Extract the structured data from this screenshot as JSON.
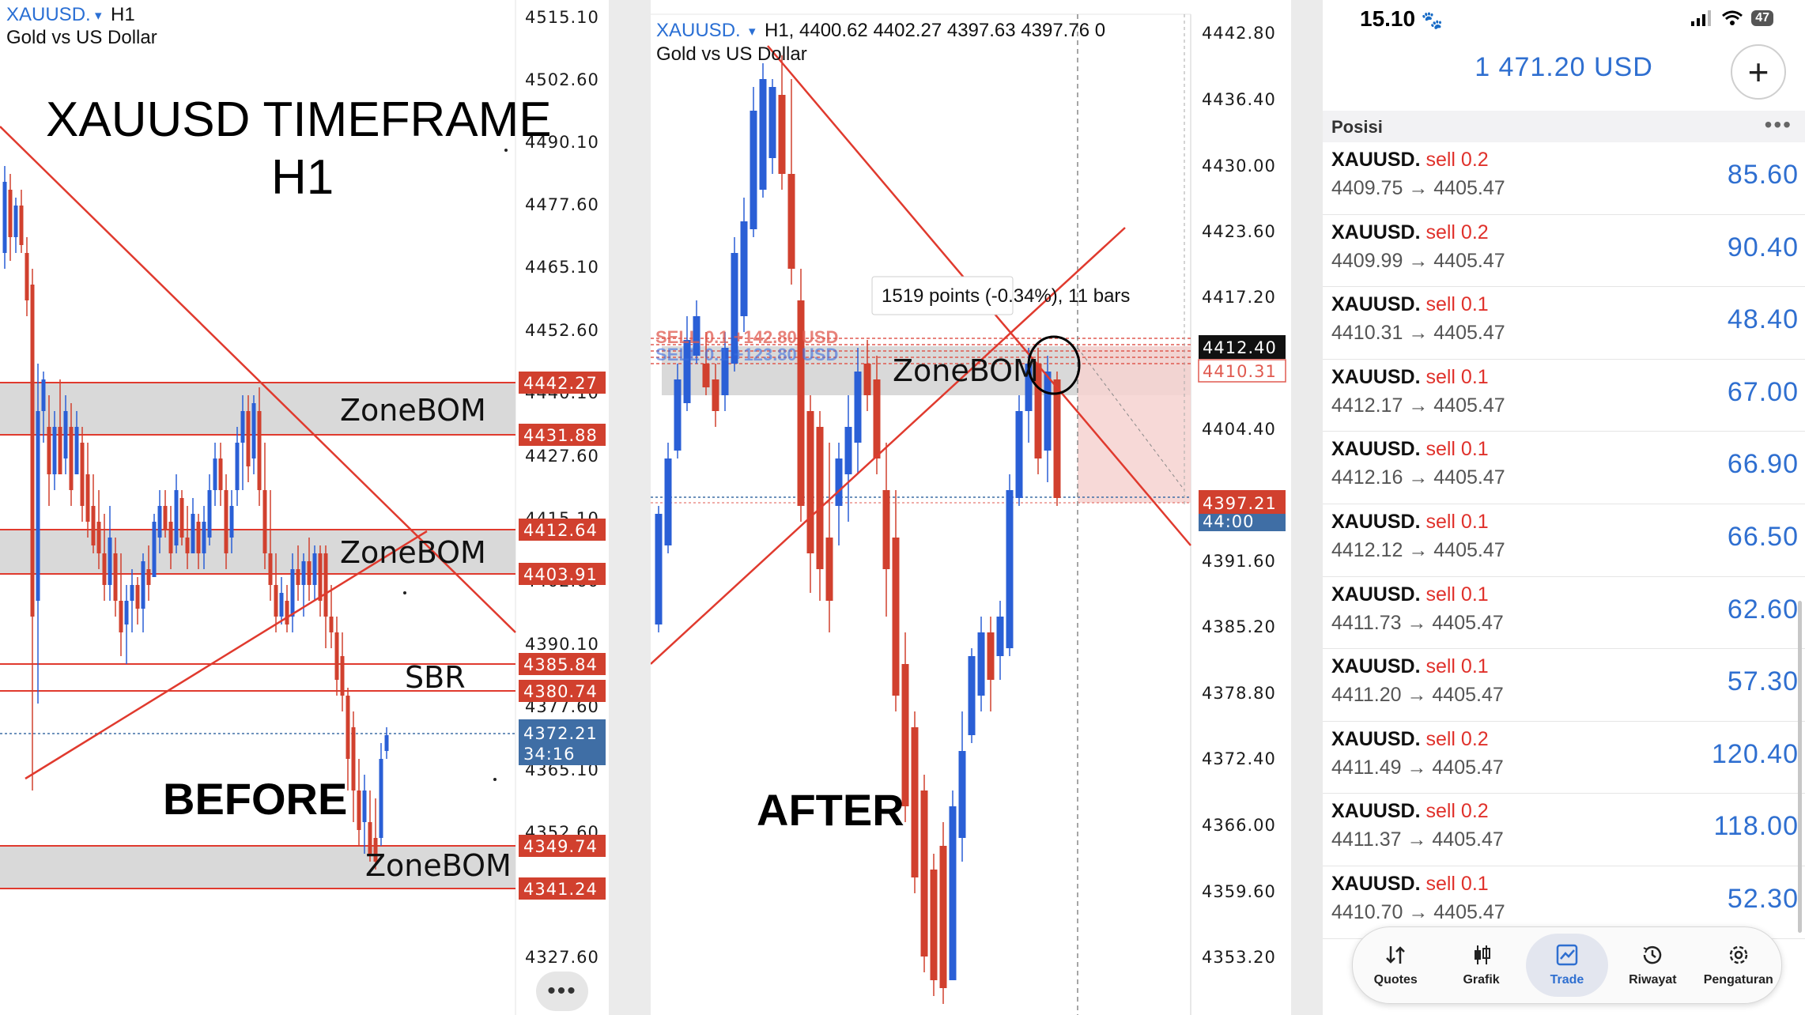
{
  "left_chart": {
    "symbol": "XAUUSD.",
    "dropdown_glyph": "▾",
    "timeframe": "H1",
    "subtitle": "Gold vs US Dollar",
    "title_line1": "XAUUSD TIMEFRAME",
    "title_line2": "H1",
    "label_before": "BEFORE",
    "zone1": "ZoneBOM",
    "zone2": "ZoneBOM",
    "zone3": "ZoneBOM",
    "sbr": "SBR",
    "axis": [
      "4515.10",
      "4502.60",
      "4490.10",
      "4477.60",
      "4465.10",
      "4452.60",
      "4440.10",
      "4427.60",
      "4415.10",
      "4402.60",
      "4390.10",
      "4377.60",
      "4365.10",
      "4352.60",
      "4327.60"
    ],
    "tags": [
      "4442.27",
      "4431.88",
      "4412.64",
      "4403.91",
      "4385.84",
      "4380.74",
      "4349.74",
      "4341.24"
    ],
    "current_price": "4372.21",
    "countdown": "34:16",
    "colors": {
      "bull": "#2a5fd6",
      "bear": "#d1402e",
      "line": "#e03a2e",
      "zone": "#d8d8d8",
      "current": "#3f6ea5"
    }
  },
  "mid_chart": {
    "symbol": "XAUUSD.",
    "dropdown_glyph": "▾",
    "header": "H1, 4400.62 4402.27 4397.63 4397.76 0",
    "subtitle": "Gold vs US Dollar",
    "label_after": "AFTER",
    "zone": "ZoneBOM",
    "measure": "1519 points (-0.34%), 11 bars",
    "sell_labels": [
      "SELL 0.1 +142.80 USD",
      "SELL 0.1 +123.80 USD"
    ],
    "axis": [
      "4442.80",
      "4436.40",
      "4430.00",
      "4423.60",
      "4417.20",
      "4404.40",
      "4391.60",
      "4385.20",
      "4378.80",
      "4372.40",
      "4366.00",
      "4359.60",
      "4353.20"
    ],
    "tag_black": "4412.40",
    "tag_outline": "4410.31",
    "current_price": "4397.21",
    "countdown": "44:00"
  },
  "phone": {
    "time": "15.10",
    "battery": "47",
    "balance": "1 471.20 USD",
    "plus": "+",
    "section": "Posisi",
    "section_menu": "•••",
    "positions": [
      {
        "symbol": "XAUUSD.",
        "side": "sell 0.2",
        "prices": "4409.75 → 4405.47",
        "profit": "85.60"
      },
      {
        "symbol": "XAUUSD.",
        "side": "sell 0.2",
        "prices": "4409.99 → 4405.47",
        "profit": "90.40"
      },
      {
        "symbol": "XAUUSD.",
        "side": "sell 0.1",
        "prices": "4410.31 → 4405.47",
        "profit": "48.40"
      },
      {
        "symbol": "XAUUSD.",
        "side": "sell 0.1",
        "prices": "4412.17 → 4405.47",
        "profit": "67.00"
      },
      {
        "symbol": "XAUUSD.",
        "side": "sell 0.1",
        "prices": "4412.16 → 4405.47",
        "profit": "66.90"
      },
      {
        "symbol": "XAUUSD.",
        "side": "sell 0.1",
        "prices": "4412.12 → 4405.47",
        "profit": "66.50"
      },
      {
        "symbol": "XAUUSD.",
        "side": "sell 0.1",
        "prices": "4411.73 → 4405.47",
        "profit": "62.60"
      },
      {
        "symbol": "XAUUSD.",
        "side": "sell 0.1",
        "prices": "4411.20 → 4405.47",
        "profit": "57.30"
      },
      {
        "symbol": "XAUUSD.",
        "side": "sell 0.2",
        "prices": "4411.49 → 4405.47",
        "profit": "120.40"
      },
      {
        "symbol": "XAUUSD.",
        "side": "sell 0.2",
        "prices": "4411.37 → 4405.47",
        "profit": "118.00"
      },
      {
        "symbol": "XAUUSD.",
        "side": "sell 0.1",
        "prices": "4410.70 → 4405.47",
        "profit": "52.30"
      }
    ],
    "tabs": [
      {
        "label": "Quotes",
        "icon": "quotes-icon",
        "glyph": "⇅",
        "active": false
      },
      {
        "label": "Grafik",
        "icon": "candles-icon",
        "glyph": "┃┃",
        "active": false
      },
      {
        "label": "Trade",
        "icon": "trade-chart-icon",
        "glyph": "📈",
        "active": true
      },
      {
        "label": "Riwayat",
        "icon": "history-icon",
        "glyph": "↺",
        "active": false
      },
      {
        "label": "Pengaturan",
        "icon": "gear-icon",
        "glyph": "⚙",
        "active": false
      }
    ]
  },
  "more_button": "•••"
}
